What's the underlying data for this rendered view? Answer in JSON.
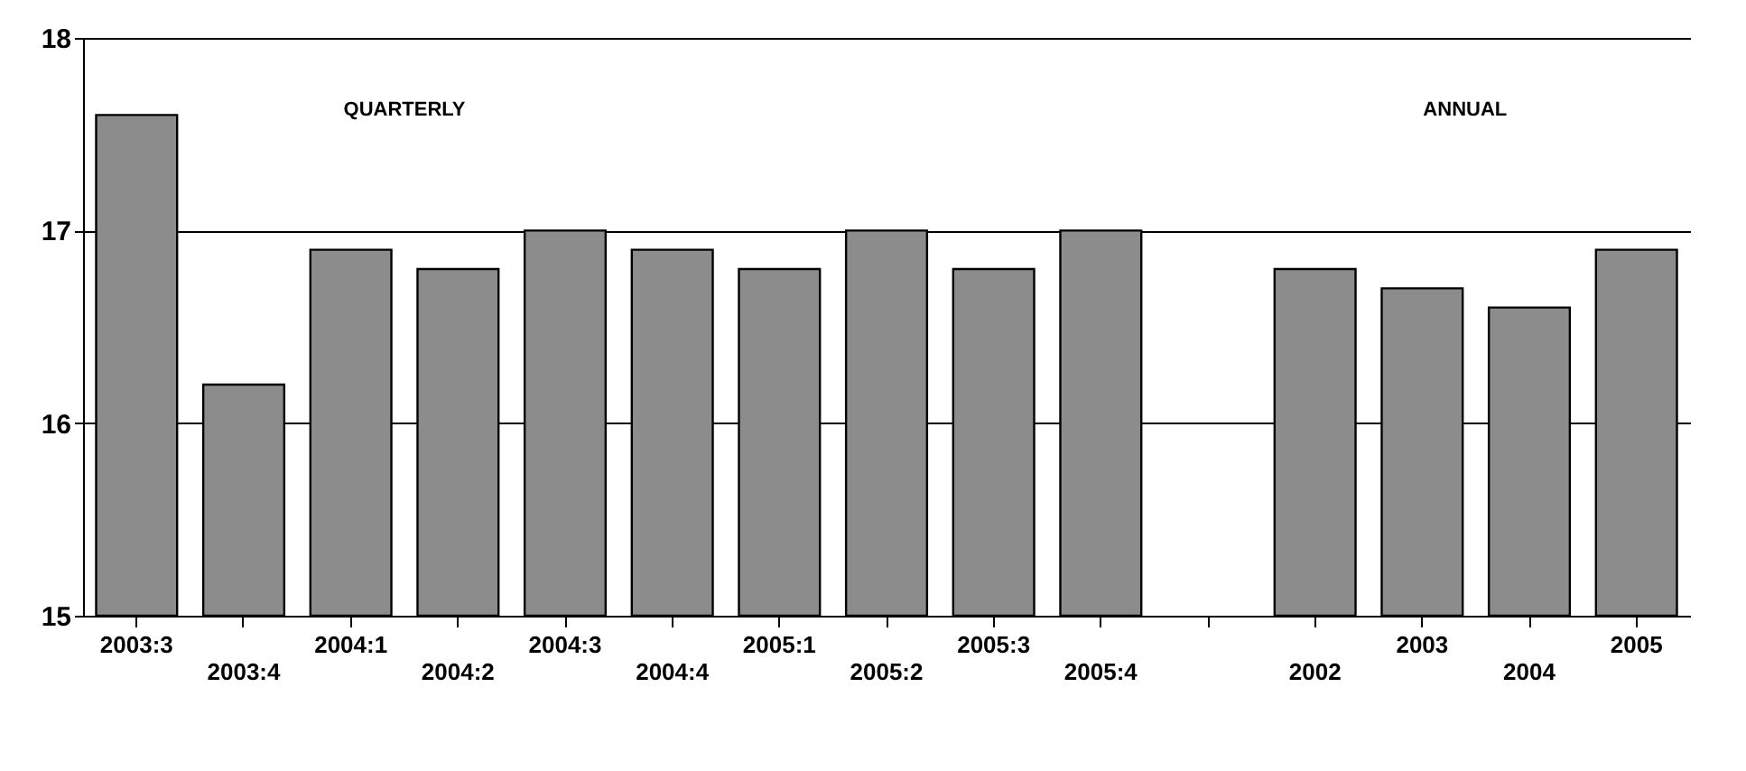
{
  "chart_data": {
    "type": "bar",
    "categories": [
      "2003:3",
      "2003:4",
      "2004:1",
      "2004:2",
      "2004:3",
      "2004:4",
      "2005:1",
      "2005:2",
      "2005:3",
      "2005:4",
      null,
      "2002",
      "2003",
      "2004",
      "2005"
    ],
    "values": [
      17.6,
      16.2,
      16.9,
      16.8,
      17.0,
      16.9,
      16.8,
      17.0,
      16.8,
      17.0,
      null,
      16.8,
      16.7,
      16.6,
      16.9
    ],
    "color": "#8c8c8c",
    "ylim": [
      15,
      18
    ],
    "yticks": [
      15,
      16,
      17,
      18
    ],
    "grid": "y",
    "annotations": [
      "QUARTERLY",
      "ANNUAL"
    ]
  }
}
